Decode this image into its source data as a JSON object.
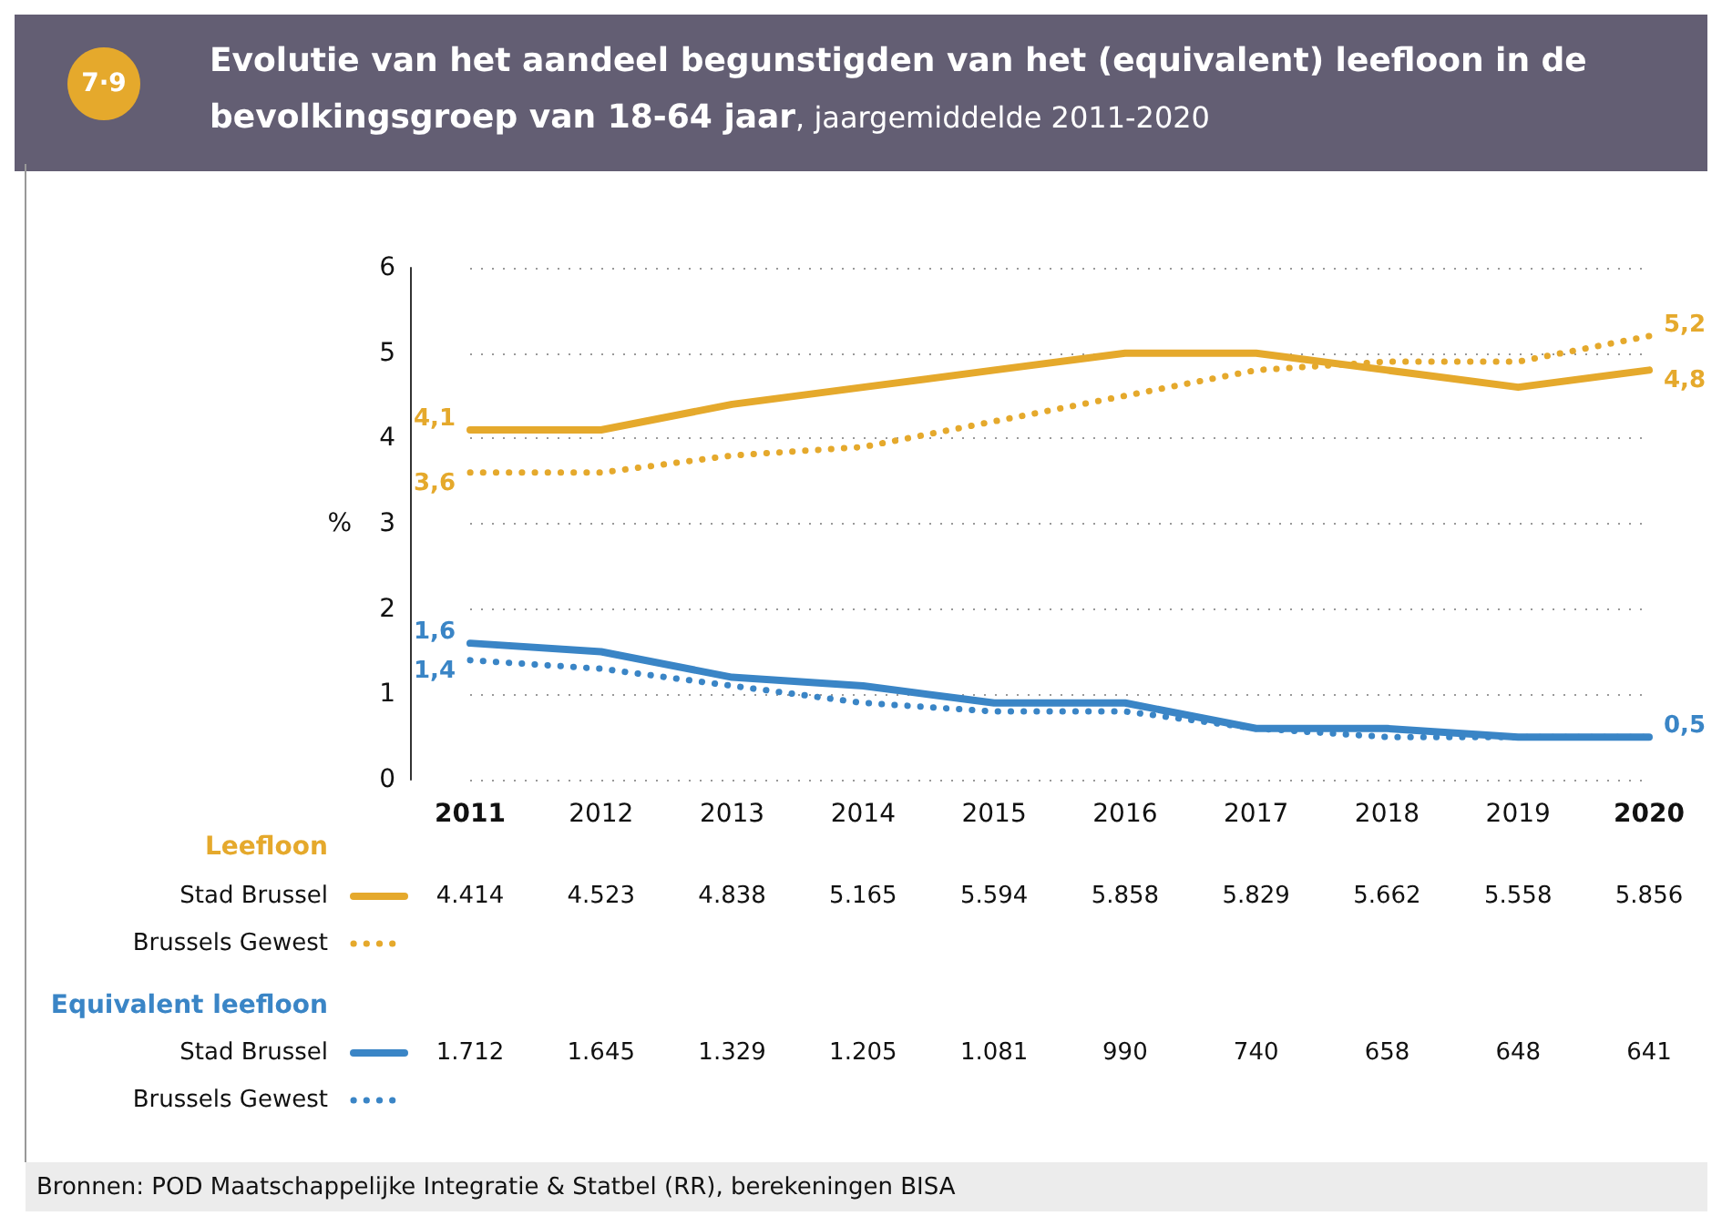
{
  "chart_data": {
    "type": "line",
    "title": "Evolutie van het aandeel begunstigden van het (equivalent) leefloon in de bevolkingsgroep van 18-64 jaar",
    "subtitle": ", jaargemiddelde 2011-2020",
    "ylabel": "%",
    "categories": [
      "2011",
      "2012",
      "2013",
      "2014",
      "2015",
      "2016",
      "2017",
      "2018",
      "2019",
      "2020"
    ],
    "series": [
      {
        "name": "Stad Brussel",
        "color": "#e5a92c",
        "line_style": "solid",
        "values": [
          4.1,
          4.1,
          4.4,
          4.6,
          4.8,
          5.0,
          5.0,
          4.8,
          4.6,
          4.8
        ],
        "value_labels": [
          "4,1",
          null,
          null,
          null,
          null,
          null,
          null,
          null,
          null,
          "4,8"
        ]
      },
      {
        "name": "Brussels Gewest",
        "color": "#e5a92c",
        "line_style": "dotted",
        "values": [
          3.6,
          3.6,
          3.8,
          3.9,
          4.2,
          4.5,
          4.8,
          4.9,
          4.9,
          5.2
        ],
        "value_labels": [
          "3,6",
          null,
          null,
          null,
          null,
          null,
          null,
          null,
          null,
          "5,2"
        ]
      },
      {
        "name": "Stad Brussel",
        "color": "#3a85c6",
        "line_style": "solid",
        "values": [
          1.6,
          1.5,
          1.2,
          1.1,
          0.9,
          0.9,
          0.6,
          0.6,
          0.5,
          0.5
        ],
        "value_labels": [
          "1,6",
          null,
          null,
          null,
          null,
          null,
          null,
          null,
          null,
          "0,5"
        ]
      },
      {
        "name": "Brussels Gewest",
        "color": "#3a85c6",
        "line_style": "dotted",
        "values": [
          1.4,
          1.3,
          1.1,
          0.9,
          0.8,
          0.8,
          0.6,
          0.5,
          0.5,
          0.5
        ],
        "value_labels": [
          "1,4",
          null,
          null,
          null,
          null,
          null,
          null,
          null,
          null,
          null
        ]
      }
    ],
    "ylim": [
      0,
      6
    ],
    "yticks": [
      0,
      1,
      2,
      3,
      4,
      5,
      6
    ],
    "grid": "y",
    "legend": "bottom",
    "marker": "none",
    "annotations": [
      "7·9",
      "Leefloon",
      "4.414",
      "4.523",
      "4.838",
      "5.165",
      "5.594",
      "5.858",
      "5.829",
      "5.662",
      "5.558",
      "5.856",
      "Equivalent leefloon",
      "1.712",
      "1.645",
      "1.329",
      "1.205",
      "1.081",
      "990",
      "740",
      "658",
      "648",
      "641",
      "Bronnen: POD Maatschappelijke Integratie & Statbel (RR), berekeningen BISA"
    ]
  }
}
